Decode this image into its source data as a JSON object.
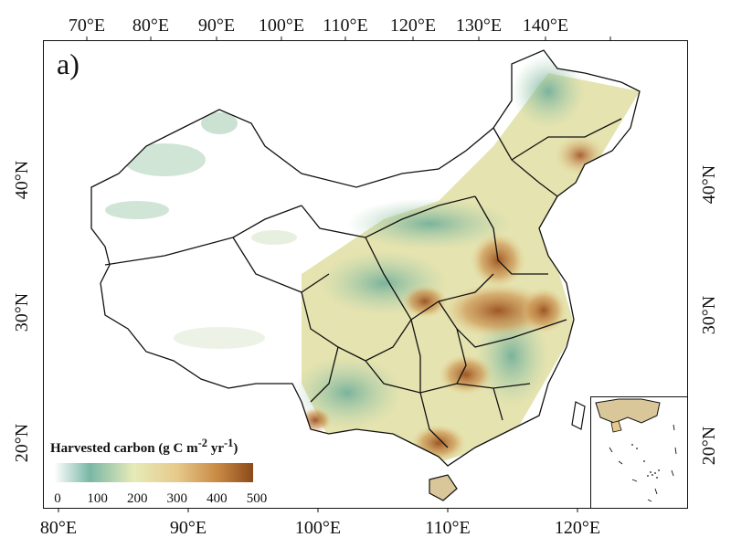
{
  "panel_label": "a)",
  "top_axis_ticks": [
    "70°E",
    "80°E",
    "90°E",
    "100°E",
    "110°E",
    "120°E",
    "130°E",
    "140°E"
  ],
  "bottom_axis_ticks": [
    "80°E",
    "90°E",
    "100°E",
    "110°E",
    "120°E"
  ],
  "left_axis_ticks": [
    "40°N",
    "30°N",
    "20°N"
  ],
  "right_axis_ticks": [
    "40°N",
    "30°N",
    "20°N"
  ],
  "legend": {
    "title_main": "Harvested carbon (g C m",
    "title_exp1": "-2",
    "title_mid": " yr",
    "title_exp2": "-1",
    "title_end": ")",
    "ticks": [
      "0",
      "100",
      "200",
      "300",
      "400",
      "500"
    ],
    "colors": [
      "#ffffff",
      "#7ab7a6",
      "#e6ebb8",
      "#e6c98a",
      "#c98a45",
      "#8c4a1a"
    ]
  },
  "colors": {
    "low": "#7fb8a4",
    "mid": "#e8e2a2",
    "high": "#c27a3a",
    "very_high": "#9a4f1e",
    "border": "#111111"
  }
}
